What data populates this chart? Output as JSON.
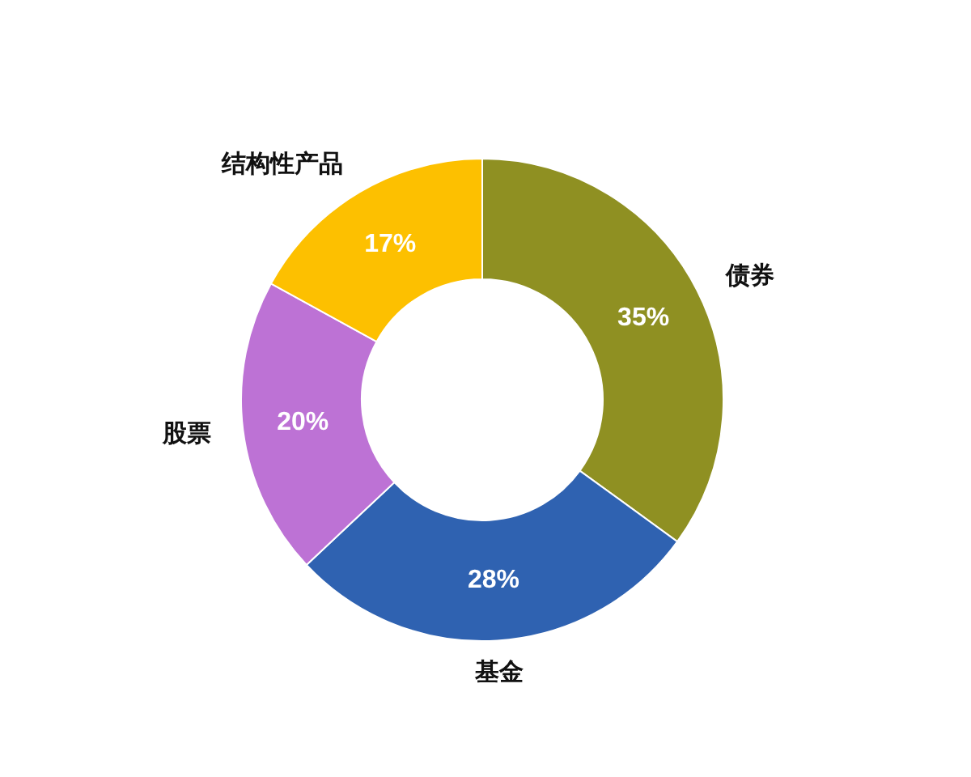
{
  "chart_data": {
    "type": "donut",
    "categories": [
      "债券",
      "基金",
      "股票",
      "结构性产品"
    ],
    "values": [
      35,
      28,
      20,
      17
    ],
    "colors": [
      "#8f9022",
      "#2f62b1",
      "#bd72d5",
      "#fdc000"
    ],
    "value_labels": [
      "35%",
      "28%",
      "20%",
      "17%"
    ]
  }
}
